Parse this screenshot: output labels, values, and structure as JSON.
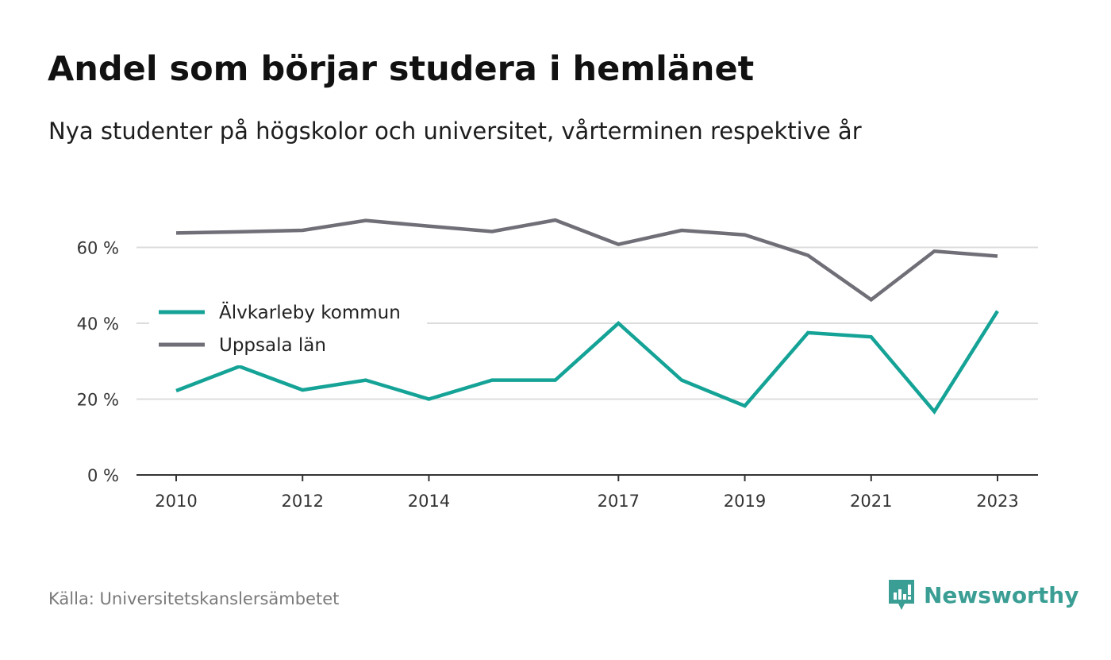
{
  "title": "Andel som börjar studera i hemlänet",
  "subtitle": "Nya studenter på högskolor och universitet, vårterminen respektive år",
  "source": "Källa: Universitetskanslersämbetet",
  "brand": {
    "name": "Newsworthy",
    "icon": "newsworthy-logo-icon",
    "color": "#3a9e94"
  },
  "chart_data": {
    "type": "line",
    "x": [
      2010,
      2011,
      2012,
      2013,
      2014,
      2015,
      2016,
      2017,
      2018,
      2019,
      2020,
      2021,
      2022,
      2023
    ],
    "x_tick_labels": [
      "2010",
      "2012",
      "2014",
      "2017",
      "2019",
      "2021",
      "2023"
    ],
    "y_ticks": [
      0,
      20,
      40,
      60
    ],
    "y_tick_labels": [
      "0 %",
      "20 %",
      "40 %",
      "60 %"
    ],
    "ylim": [
      0,
      70
    ],
    "grid": true,
    "legend_position": "left",
    "series": [
      {
        "name": "Älvkarleby kommun",
        "color": "#14a396",
        "values": [
          22.2,
          28.6,
          22.4,
          25.0,
          20.0,
          25.0,
          25.0,
          40.0,
          25.0,
          18.2,
          37.5,
          36.4,
          16.7,
          43.2
        ]
      },
      {
        "name": "Uppsala län",
        "color": "#706f77",
        "values": [
          63.8,
          64.1,
          64.5,
          67.1,
          65.6,
          64.2,
          67.2,
          60.8,
          64.5,
          63.3,
          57.9,
          46.2,
          59.0,
          57.7
        ]
      }
    ]
  }
}
